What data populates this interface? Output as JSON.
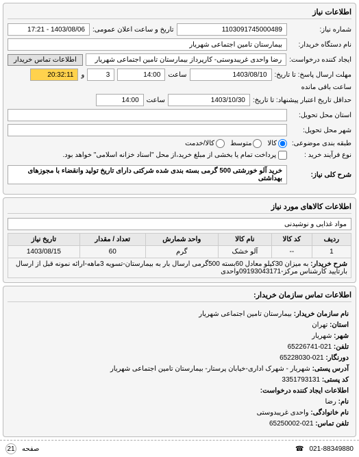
{
  "panel_titles": {
    "need_info": "اطلاعات نیاز",
    "goods_info": "اطلاعات کالاهای مورد نیاز",
    "buyer_contact": "اطلاعات تماس سازمان خریدار:"
  },
  "labels": {
    "request_no": "شماره نیاز:",
    "announce_date": "تاریخ و ساعت اعلان عمومی:",
    "buyer_org": "نام دستگاه خریدار:",
    "requester": "ایجاد کننده درخواست:",
    "buyer_contact_btn": "اطلاعات تماس خریدار",
    "reply_deadline": "مهلت ارسال پاسخ: تا تاریخ:",
    "hour": "ساعت",
    "remaining": "ساعت باقی مانده",
    "min_valid_days": "حداقل تاریخ اعتبار پیشنهاد: تا تاریخ:",
    "delivery_province": "استان محل تحویل:",
    "delivery_city": "شهر محل تحویل:",
    "package": "طبقه بندی موضوعی:",
    "pk_all": "کالا",
    "pk_mid": "متوسط",
    "pk_small": "کالا/خدمت",
    "purchase_type": "نوع فرآیند خرید :",
    "purchase_note": "پرداخت تمام یا بخشی از مبلغ خرید،از محل \"اسناد خزانه اسلامی\" خواهد بود.",
    "need_title": "شرح کلی نیاز:",
    "category": "",
    "table": {
      "idx": "ردیف",
      "code": "کد کالا",
      "name": "نام کالا",
      "unit": "واحد شمارش",
      "qty": "تعداد / مقدار",
      "date": "تاریخ نیاز"
    },
    "buyer_desc": "شرح خریدار:",
    "buyer_org_name": "نام سازمان خریدار:",
    "province": "استان:",
    "city": "شهر:",
    "phone": "تلفن:",
    "fax": "دورنگار:",
    "postal": "آدرس پستی:",
    "postcode": "کد پستی:",
    "req_creator": "اطلاعات ایجاد کننده درخواست:",
    "name": "نام:",
    "family": "نام خانوادگی:",
    "contact_phone": "تلفن تماس:",
    "page": "صفحه"
  },
  "values": {
    "request_no": "1103091745000489",
    "announce_date": "1403/08/06 - 17:21",
    "buyer_org": "بیمارستان تامین اجتماعی شهریار",
    "requester": "رضا واحدی غریبدوستی- کارپرداز بیمارستان تامین اجتماعی شهریار",
    "reply_date": "1403/08/10",
    "reply_hour": "14:00",
    "remaining_days": "3",
    "remaining_time": "20:32:11",
    "valid_date": "1403/10/30",
    "valid_hour": "14:00",
    "need_title": "خرید آلو خورشتی 500 گرمی بسته بندی شده شرکتی دارای تاریخ تولید وانقضاء با مجوزهای بهداشتی",
    "category": "مواد غذایی و نوشیدنی",
    "row": {
      "idx": "1",
      "code": "--",
      "name": "آلو خشک",
      "unit": "گرم",
      "qty": "60",
      "date": "1403/08/15"
    },
    "buyer_desc": "به میزان 30کیلو معادل 60بسته 500گرمی ارسال بار به بیمارستان-تسویه 3ماهه-ارائه نمونه قبل از ارسال بارتایید کارشناس مرکز-09193043171واحدی",
    "org_name": "بیمارستان تامین اجتماعی شهریار",
    "province": "تهران",
    "city": "شهریار",
    "phone": "021-65226741",
    "fax": "021-65228030",
    "postal": "شهریار - شهرک اداری-خیابان پرستار- بیمارستان تامین اجتماعی شهریار",
    "postcode": "3351793131",
    "first_name": "رضا",
    "last_name": "واحدی غریبدوستی",
    "contact_phone": "021-65250002",
    "page": "21",
    "footer_phone": "021-88349880"
  },
  "colors": {
    "panel_bg": "#f5f5f5",
    "border": "#bbbbbb",
    "th_bg": "#e8e8e8",
    "yellow_btn": "#ffd24d",
    "red_btn": "#d9534f"
  }
}
